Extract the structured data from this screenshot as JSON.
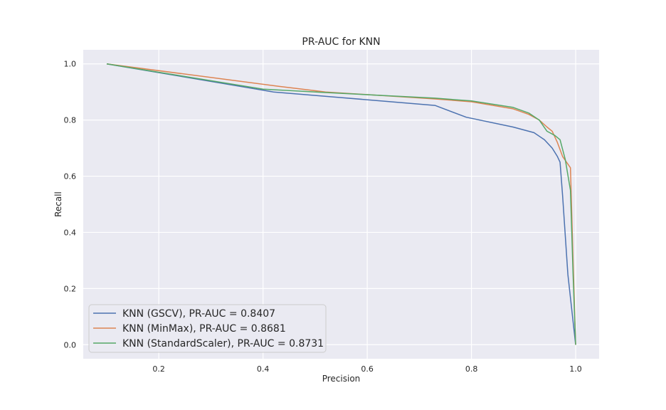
{
  "chart_data": {
    "type": "line",
    "title": "PR-AUC for KNN",
    "xlabel": "Precision",
    "ylabel": "Recall",
    "xlim": [
      0.055,
      1.045
    ],
    "ylim": [
      -0.05,
      1.05
    ],
    "grid": true,
    "legend_position": "lower-left",
    "xticks": [
      0.2,
      0.4,
      0.6,
      0.8,
      1.0
    ],
    "xtick_labels": [
      "0.2",
      "0.4",
      "0.6",
      "0.8",
      "1.0"
    ],
    "yticks": [
      0.0,
      0.2,
      0.4,
      0.6,
      0.8,
      1.0
    ],
    "ytick_labels": [
      "0.0",
      "0.2",
      "0.4",
      "0.6",
      "0.8",
      "1.0"
    ],
    "colors": {
      "background": "#eaeaf2",
      "grid": "#ffffff"
    },
    "series": [
      {
        "name": "KNN (GSCV), PR-AUC = 0.8407",
        "color": "#4c72b0",
        "x": [
          0.1,
          0.42,
          0.55,
          0.73,
          0.79,
          0.88,
          0.92,
          0.94,
          0.955,
          0.965,
          0.97,
          0.975,
          0.985,
          1.0
        ],
        "y": [
          1.0,
          0.9,
          0.88,
          0.852,
          0.81,
          0.775,
          0.755,
          0.73,
          0.7,
          0.67,
          0.65,
          0.53,
          0.25,
          0.0
        ]
      },
      {
        "name": "KNN (MinMax), PR-AUC = 0.8681",
        "color": "#dd8452",
        "x": [
          0.1,
          0.43,
          0.52,
          0.73,
          0.8,
          0.88,
          0.91,
          0.93,
          0.945,
          0.955,
          0.965,
          0.975,
          0.99,
          0.995,
          1.0
        ],
        "y": [
          1.0,
          0.92,
          0.9,
          0.875,
          0.865,
          0.84,
          0.82,
          0.8,
          0.775,
          0.76,
          0.72,
          0.67,
          0.63,
          0.3,
          0.0
        ]
      },
      {
        "name": "KNN (StandardScaler), PR-AUC = 0.8731",
        "color": "#55a868",
        "x": [
          0.1,
          0.4,
          0.52,
          0.73,
          0.8,
          0.88,
          0.91,
          0.93,
          0.945,
          0.96,
          0.97,
          0.98,
          0.99,
          0.995,
          1.0
        ],
        "y": [
          1.0,
          0.91,
          0.898,
          0.878,
          0.868,
          0.845,
          0.825,
          0.8,
          0.76,
          0.745,
          0.73,
          0.66,
          0.55,
          0.25,
          0.0
        ]
      }
    ]
  }
}
